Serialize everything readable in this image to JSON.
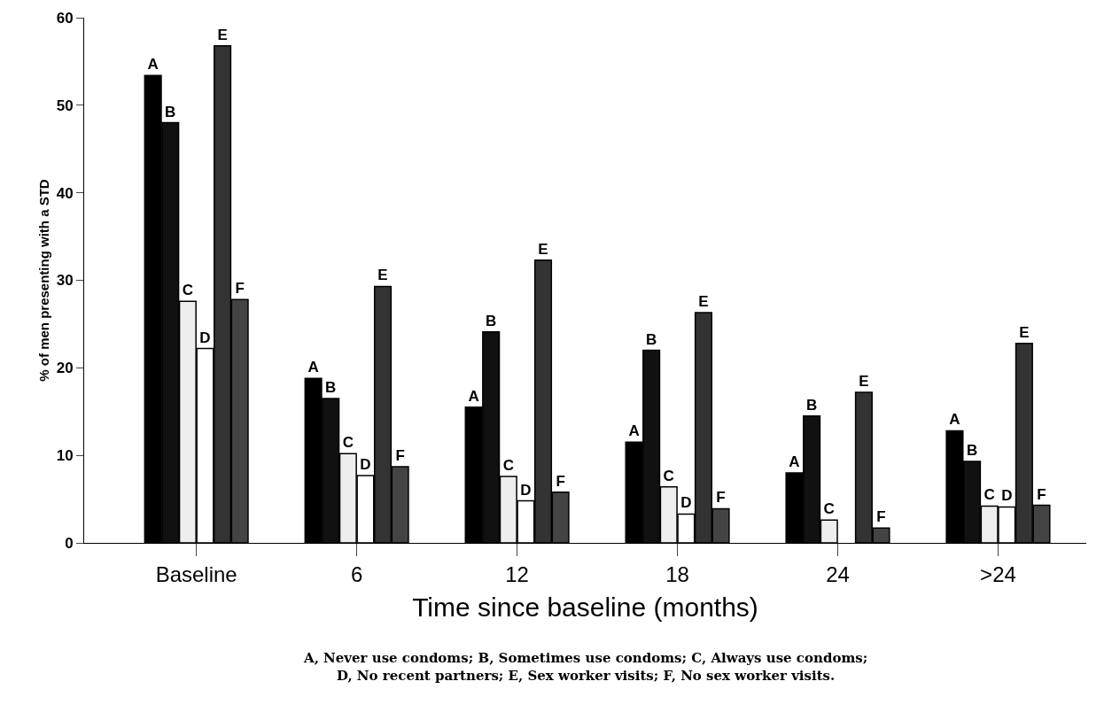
{
  "chart_data": {
    "type": "bar",
    "xlabel": "Time since baseline (months)",
    "ylabel": "% of men presenting with a STD",
    "categories": [
      "Baseline",
      "6",
      "12",
      "18",
      "24",
      ">24"
    ],
    "series": [
      {
        "name": "A",
        "color": "#000000",
        "values": [
          53.4,
          18.8,
          15.5,
          11.5,
          8.0,
          12.8
        ]
      },
      {
        "name": "B",
        "color": "#111111",
        "values": [
          48.0,
          16.5,
          24.1,
          22.0,
          14.5,
          9.3
        ]
      },
      {
        "name": "C",
        "color": "#eeeeee",
        "values": [
          27.6,
          10.2,
          7.6,
          6.4,
          2.6,
          4.2
        ]
      },
      {
        "name": "D",
        "color": "#ffffff",
        "values": [
          22.2,
          7.7,
          4.8,
          3.3,
          null,
          4.1
        ]
      },
      {
        "name": "E",
        "color": "#333333",
        "values": [
          56.8,
          29.3,
          32.3,
          26.3,
          17.2,
          22.8
        ]
      },
      {
        "name": "F",
        "color": "#444444",
        "values": [
          27.8,
          8.7,
          5.8,
          3.9,
          1.7,
          4.3
        ]
      }
    ],
    "ylim": [
      0,
      60
    ],
    "yticks": [
      0,
      10,
      20,
      30,
      40,
      50,
      60
    ],
    "grid": false,
    "legend": false,
    "annotations": [
      "A, Never use condoms; B, Sometimes use condoms; C, Always use condoms;\nD, No recent partners; E, Sex worker visits; F, No sex worker visits."
    ]
  }
}
